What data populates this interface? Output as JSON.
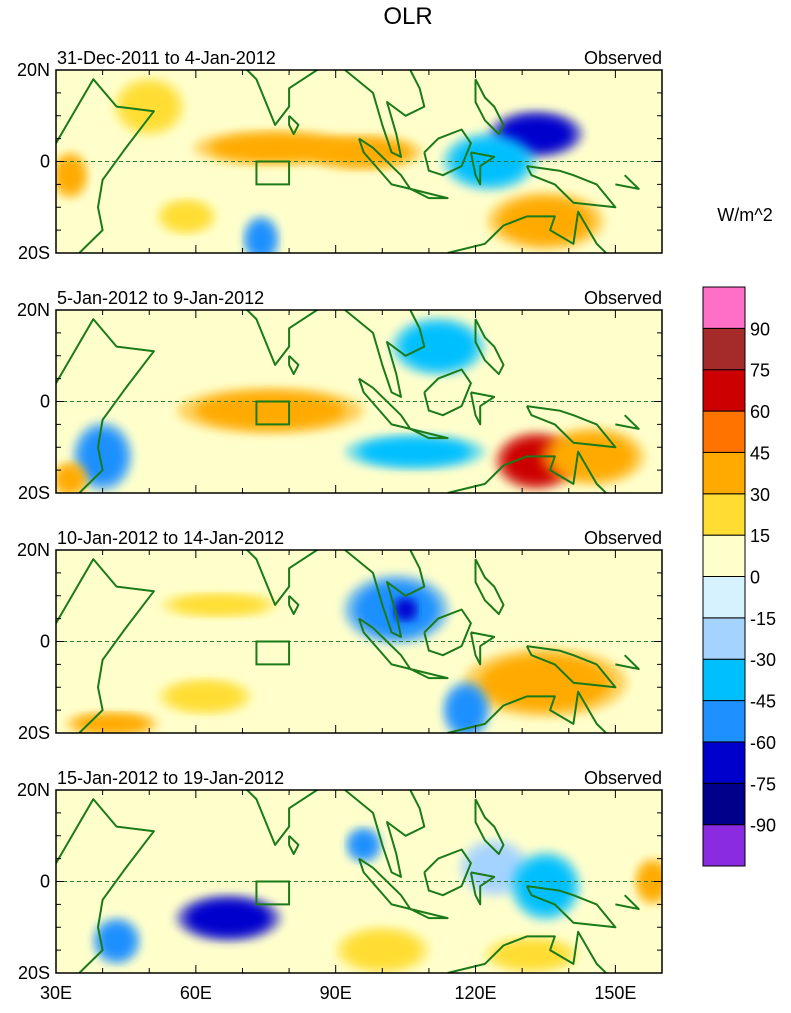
{
  "title": "OLR",
  "units_label": "W/m^2",
  "chart_data": {
    "type": "heatmap",
    "variable": "OLR",
    "units": "W/m^2",
    "x_axis": {
      "range": [
        30,
        160
      ],
      "ticks": [
        30,
        60,
        90,
        120,
        150
      ],
      "tick_labels": [
        "30E",
        "60E",
        "90E",
        "120E",
        "150E"
      ]
    },
    "y_axis": {
      "range": [
        -20,
        20
      ],
      "ticks": [
        20,
        0,
        -20
      ],
      "tick_labels": [
        "20N",
        "0",
        "20S"
      ]
    },
    "colorbar": {
      "levels": [
        -90,
        -75,
        -60,
        -45,
        -30,
        -15,
        0,
        15,
        30,
        45,
        60,
        75,
        90
      ],
      "tick_labels": [
        "-90",
        "-75",
        "-60",
        "-45",
        "-30",
        "-15",
        "0",
        "15",
        "30",
        "45",
        "60",
        "75",
        "90"
      ],
      "colors": [
        "#8a2be2",
        "#00008b",
        "#0000cd",
        "#1e90ff",
        "#00bfff",
        "#a4d3ff",
        "#d7f2ff",
        "#ffffcc",
        "#ffdd33",
        "#ffaa00",
        "#ff7300",
        "#cc0000",
        "#a52a2a",
        "#ff6ec7"
      ]
    },
    "box": {
      "lon": [
        73,
        80
      ],
      "lat": [
        -5,
        0
      ]
    },
    "panels": [
      {
        "period": "31-Dec-2011 to 4-Jan-2012",
        "label": "Observed",
        "features": [
          {
            "lon": 77,
            "lat": 3,
            "value": 35,
            "rx": 14,
            "ry": 3
          },
          {
            "lon": 96,
            "lat": 2,
            "value": 40,
            "rx": 10,
            "ry": 3
          },
          {
            "lon": 33,
            "lat": -3,
            "value": 35,
            "rx": 3,
            "ry": 4
          },
          {
            "lon": 133,
            "lat": 6,
            "value": -65,
            "rx": 8,
            "ry": 4
          },
          {
            "lon": 123,
            "lat": 0,
            "value": -35,
            "rx": 8,
            "ry": 5
          },
          {
            "lon": 74,
            "lat": -17,
            "value": -60,
            "rx": 3,
            "ry": 4
          },
          {
            "lon": 135,
            "lat": -13,
            "value": 35,
            "rx": 10,
            "ry": 5
          },
          {
            "lon": 58,
            "lat": -12,
            "value": 25,
            "rx": 5,
            "ry": 3
          },
          {
            "lon": 50,
            "lat": 12,
            "value": 20,
            "rx": 6,
            "ry": 5
          }
        ]
      },
      {
        "period": "5-Jan-2012 to 9-Jan-2012",
        "label": "Observed",
        "features": [
          {
            "lon": 76,
            "lat": -2,
            "value": 40,
            "rx": 16,
            "ry": 4
          },
          {
            "lon": 40,
            "lat": -12,
            "value": -60,
            "rx": 5,
            "ry": 6
          },
          {
            "lon": 133,
            "lat": -13,
            "value": 60,
            "rx": 7,
            "ry": 5
          },
          {
            "lon": 145,
            "lat": -12,
            "value": 35,
            "rx": 9,
            "ry": 5
          },
          {
            "lon": 107,
            "lat": -11,
            "value": -40,
            "rx": 12,
            "ry": 3
          },
          {
            "lon": 112,
            "lat": 12,
            "value": -40,
            "rx": 8,
            "ry": 5
          },
          {
            "lon": 33,
            "lat": -17,
            "value": 35,
            "rx": 3,
            "ry": 3
          }
        ]
      },
      {
        "period": "10-Jan-2012 to 14-Jan-2012",
        "label": "Observed",
        "features": [
          {
            "lon": 103,
            "lat": 7,
            "value": -55,
            "rx": 9,
            "ry": 6
          },
          {
            "lon": 105,
            "lat": 7,
            "value": -75,
            "rx": 2,
            "ry": 2
          },
          {
            "lon": 135,
            "lat": -9,
            "value": 35,
            "rx": 14,
            "ry": 6
          },
          {
            "lon": 118,
            "lat": -15,
            "value": -55,
            "rx": 4,
            "ry": 5
          },
          {
            "lon": 42,
            "lat": -18,
            "value": 30,
            "rx": 8,
            "ry": 2
          },
          {
            "lon": 65,
            "lat": 8,
            "value": 20,
            "rx": 10,
            "ry": 2
          },
          {
            "lon": 62,
            "lat": -12,
            "value": 20,
            "rx": 8,
            "ry": 3
          }
        ]
      },
      {
        "period": "15-Jan-2012 to 19-Jan-2012",
        "label": "Observed",
        "features": [
          {
            "lon": 67,
            "lat": -8,
            "value": -65,
            "rx": 9,
            "ry": 4
          },
          {
            "lon": 43,
            "lat": -13,
            "value": -60,
            "rx": 4,
            "ry": 4
          },
          {
            "lon": 96,
            "lat": 8,
            "value": -55,
            "rx": 3,
            "ry": 3
          },
          {
            "lon": 124,
            "lat": 3,
            "value": -30,
            "rx": 6,
            "ry": 5
          },
          {
            "lon": 135,
            "lat": -1,
            "value": -40,
            "rx": 6,
            "ry": 6
          },
          {
            "lon": 132,
            "lat": -16,
            "value": 25,
            "rx": 8,
            "ry": 3
          },
          {
            "lon": 100,
            "lat": -15,
            "value": 20,
            "rx": 8,
            "ry": 4
          },
          {
            "lon": 158,
            "lat": 0,
            "value": 30,
            "rx": 3,
            "ry": 4
          }
        ]
      }
    ]
  }
}
